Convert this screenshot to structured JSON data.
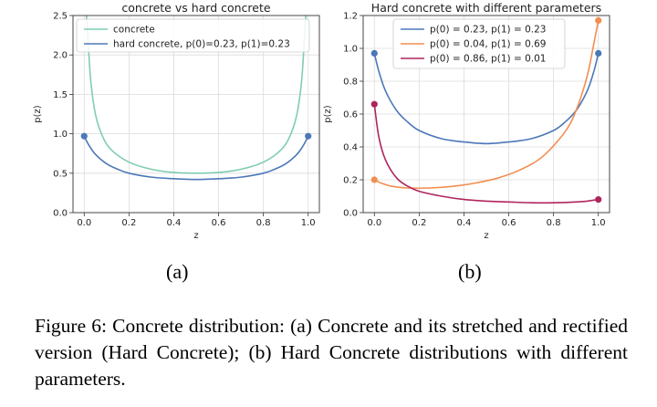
{
  "figure": {
    "sublabel_a": "(a)",
    "sublabel_b": "(b)",
    "caption": "Figure 6:  Concrete distribution: (a) Concrete and its stretched and rectified version (Hard Concrete); (b) Hard Concrete distributions with different parameters."
  },
  "chart_data": [
    {
      "type": "line",
      "title": "concrete vs hard concrete",
      "xlabel": "z",
      "ylabel": "p(z)",
      "xlim": [
        -0.05,
        1.05
      ],
      "ylim": [
        0.0,
        2.5
      ],
      "xticks": [
        "0.0",
        "0.2",
        "0.4",
        "0.6",
        "0.8",
        "1.0"
      ],
      "yticks": [
        "0.0",
        "0.5",
        "1.0",
        "1.5",
        "2.0",
        "2.5"
      ],
      "grid": true,
      "legend": "top-center",
      "series": [
        {
          "name": "concrete",
          "color": "#7fcdb0",
          "x": [
            0.005,
            0.01,
            0.02,
            0.03,
            0.05,
            0.08,
            0.12,
            0.2,
            0.3,
            0.4,
            0.5,
            0.6,
            0.7,
            0.8,
            0.88,
            0.92,
            0.95,
            0.97,
            0.98,
            0.99,
            0.995
          ],
          "y": [
            2.5,
            2.5,
            2.05,
            1.65,
            1.25,
            0.98,
            0.8,
            0.64,
            0.55,
            0.51,
            0.5,
            0.51,
            0.55,
            0.64,
            0.8,
            0.98,
            1.25,
            1.65,
            2.05,
            2.5,
            2.5
          ]
        },
        {
          "name": "hard concrete, p(0)=0.23, p(1)=0.23",
          "color": "#4c78b8",
          "x": [
            0.0,
            0.02,
            0.05,
            0.1,
            0.15,
            0.2,
            0.3,
            0.4,
            0.5,
            0.6,
            0.7,
            0.8,
            0.85,
            0.9,
            0.95,
            0.98,
            1.0
          ],
          "y": [
            0.97,
            0.86,
            0.74,
            0.62,
            0.55,
            0.5,
            0.45,
            0.43,
            0.42,
            0.43,
            0.45,
            0.5,
            0.55,
            0.62,
            0.74,
            0.86,
            0.97
          ],
          "endpoints": [
            [
              0.0,
              0.97
            ],
            [
              1.0,
              0.97
            ]
          ]
        }
      ]
    },
    {
      "type": "line",
      "title": "Hard concrete with different parameters",
      "xlabel": "z",
      "ylabel": "p(z)",
      "xlim": [
        -0.05,
        1.05
      ],
      "ylim": [
        0.0,
        1.2
      ],
      "xticks": [
        "0.0",
        "0.2",
        "0.4",
        "0.6",
        "0.8",
        "1.0"
      ],
      "yticks": [
        "0.0",
        "0.2",
        "0.4",
        "0.6",
        "0.8",
        "1.0",
        "1.2"
      ],
      "grid": true,
      "legend": "top-center",
      "series": [
        {
          "name": "p(0) = 0.23,   p(1) = 0.23",
          "color": "#4c78b8",
          "x": [
            0.0,
            0.02,
            0.05,
            0.1,
            0.15,
            0.2,
            0.3,
            0.4,
            0.5,
            0.6,
            0.7,
            0.8,
            0.85,
            0.9,
            0.95,
            0.98,
            1.0
          ],
          "y": [
            0.97,
            0.86,
            0.74,
            0.62,
            0.55,
            0.5,
            0.45,
            0.43,
            0.42,
            0.43,
            0.45,
            0.5,
            0.55,
            0.62,
            0.74,
            0.86,
            0.97
          ],
          "endpoints": [
            [
              0.0,
              0.97
            ],
            [
              1.0,
              0.97
            ]
          ]
        },
        {
          "name": "p(0) = 0.04,   p(1) = 0.69",
          "color": "#f28e50",
          "x": [
            0.0,
            0.03,
            0.08,
            0.15,
            0.25,
            0.35,
            0.45,
            0.55,
            0.65,
            0.75,
            0.85,
            0.9,
            0.95,
            0.98,
            1.0
          ],
          "y": [
            0.2,
            0.18,
            0.16,
            0.15,
            0.15,
            0.16,
            0.18,
            0.21,
            0.26,
            0.34,
            0.49,
            0.62,
            0.83,
            1.03,
            1.17
          ],
          "endpoints": [
            [
              0.0,
              0.2
            ],
            [
              1.0,
              1.17
            ]
          ]
        },
        {
          "name": "p(0) = 0.86,   p(1) = 0.01",
          "color": "#b0245e",
          "x": [
            0.0,
            0.02,
            0.05,
            0.1,
            0.15,
            0.2,
            0.3,
            0.4,
            0.5,
            0.6,
            0.7,
            0.8,
            0.9,
            0.95,
            1.0
          ],
          "y": [
            0.66,
            0.46,
            0.32,
            0.21,
            0.16,
            0.13,
            0.1,
            0.08,
            0.07,
            0.065,
            0.06,
            0.06,
            0.065,
            0.07,
            0.08
          ],
          "endpoints": [
            [
              0.0,
              0.66
            ],
            [
              1.0,
              0.08
            ]
          ]
        }
      ]
    }
  ]
}
